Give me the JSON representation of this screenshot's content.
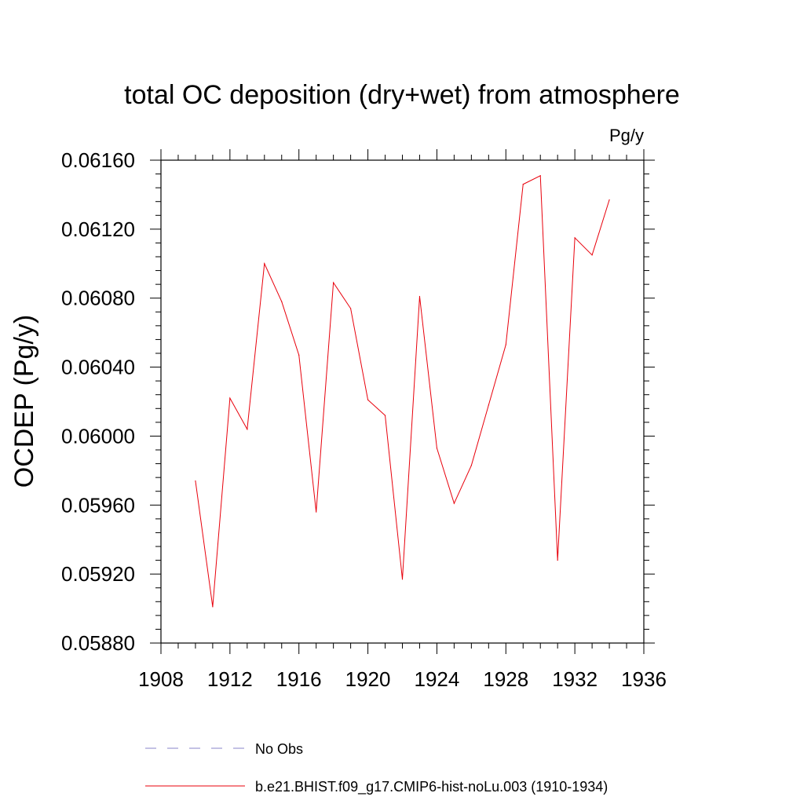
{
  "chart_data": {
    "type": "line",
    "title": "total OC deposition (dry+wet) from atmosphere",
    "units": "Pg/y",
    "ylabel": "OCDEP  (Pg/y)",
    "xlabel": "",
    "xlim": [
      1908,
      1936
    ],
    "ylim": [
      0.0588,
      0.0616
    ],
    "x_ticks": [
      1908,
      1912,
      1916,
      1920,
      1924,
      1928,
      1932,
      1936
    ],
    "x_tick_labels": [
      "1908",
      "1912",
      "1916",
      "1920",
      "1924",
      "1928",
      "1932",
      "1936"
    ],
    "y_ticks": [
      0.0588,
      0.0592,
      0.0596,
      0.06,
      0.0604,
      0.0608,
      0.0612,
      0.0616
    ],
    "y_tick_labels": [
      "0.05880",
      "0.05920",
      "0.05960",
      "0.06000",
      "0.06040",
      "0.06080",
      "0.06120",
      "0.06160"
    ],
    "grid": false,
    "legend_position": "bottom",
    "series": [
      {
        "name": "b.e21.BHIST.f09_g17.CMIP6-hist-noLu.003 (1910-1934)",
        "color": "#e8000b",
        "style": "solid",
        "x": [
          1910,
          1911,
          1912,
          1913,
          1914,
          1915,
          1916,
          1917,
          1918,
          1919,
          1920,
          1921,
          1922,
          1923,
          1924,
          1925,
          1926,
          1927,
          1928,
          1929,
          1930,
          1931,
          1932,
          1933,
          1934
        ],
        "values": [
          0.05974,
          0.05901,
          0.06022,
          0.06004,
          0.061,
          0.06078,
          0.06047,
          0.05956,
          0.06089,
          0.06074,
          0.06021,
          0.06012,
          0.05917,
          0.06081,
          0.05993,
          0.05961,
          0.05983,
          0.06018,
          0.06053,
          0.06146,
          0.06151,
          0.05928,
          0.06115,
          0.06105,
          0.06137
        ]
      }
    ],
    "legend": [
      {
        "label": "No Obs",
        "color": "#8a86c8",
        "style": "dashed"
      },
      {
        "label": "b.e21.BHIST.f09_g17.CMIP6-hist-noLu.003 (1910-1934)",
        "color": "#e8000b",
        "style": "solid"
      }
    ]
  }
}
